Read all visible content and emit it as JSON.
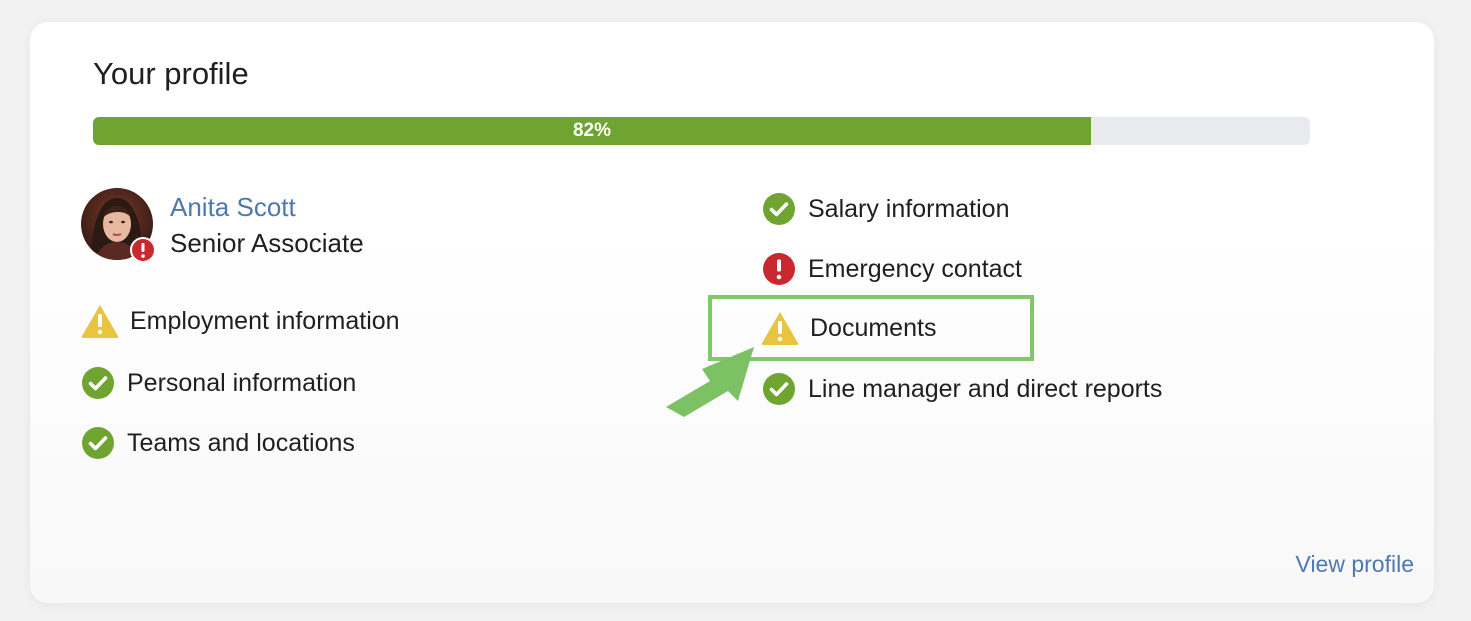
{
  "profile": {
    "title": "Your profile",
    "progress_percent": 82,
    "progress_label": "82%",
    "user": {
      "name": "Anita Scott",
      "role": "Senior Associate"
    },
    "left_items": [
      {
        "label": "Employment information",
        "status": "warning"
      },
      {
        "label": "Personal information",
        "status": "complete"
      },
      {
        "label": "Teams and locations",
        "status": "complete"
      }
    ],
    "right_items": [
      {
        "label": "Salary information",
        "status": "complete"
      },
      {
        "label": "Emergency contact",
        "status": "error"
      },
      {
        "label": "Documents",
        "status": "warning"
      },
      {
        "label": "Line manager and direct reports",
        "status": "complete"
      }
    ],
    "view_profile_label": "View profile"
  },
  "colors": {
    "progress_fill": "#6fa431",
    "progress_track": "#e9eaed",
    "link": "#4d78b0",
    "check": "#6fa431",
    "error": "#c8282e",
    "warning": "#e9c440",
    "highlight": "#80c86a"
  },
  "icons": {
    "complete": "check-circle-icon",
    "error": "exclamation-circle-icon",
    "warning": "warning-triangle-icon"
  }
}
